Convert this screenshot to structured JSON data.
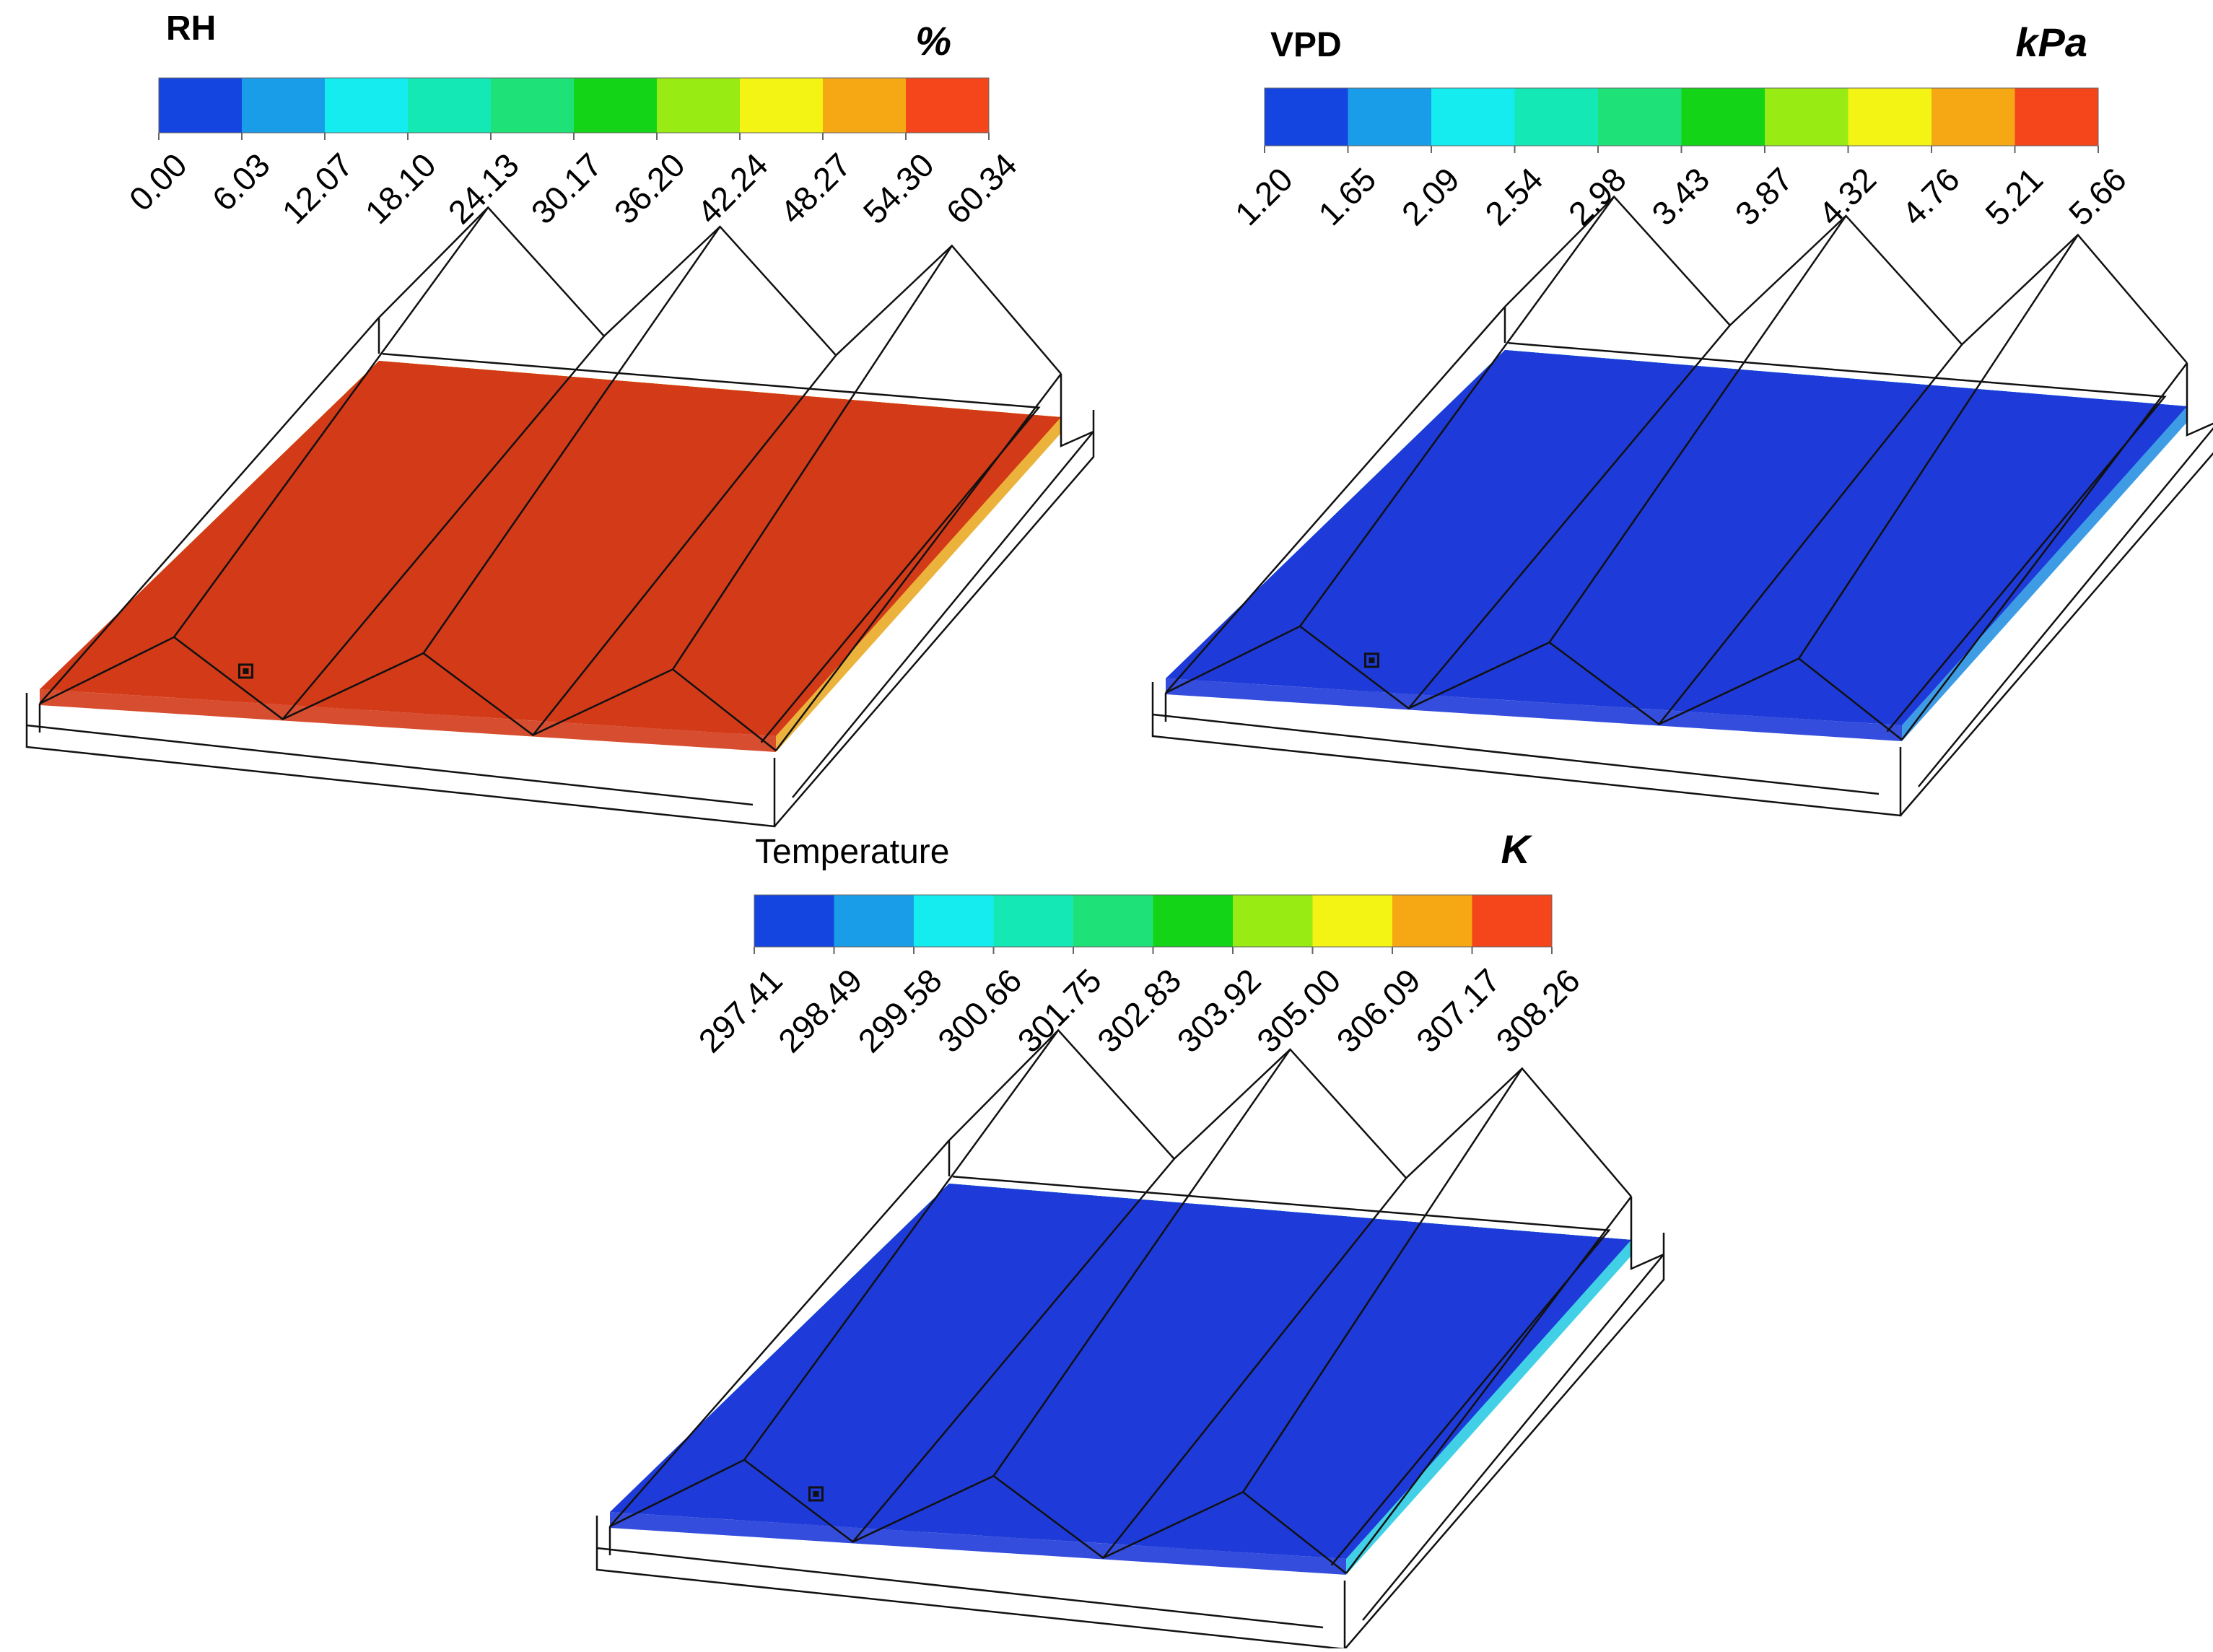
{
  "figure": {
    "panels": [
      {
        "id": "rh",
        "title": "RH",
        "unit": "%",
        "ticks": [
          "0.00",
          "6.03",
          "12.07",
          "18.10",
          "24.13",
          "30.17",
          "36.20",
          "42.24",
          "48.27",
          "54.30",
          "60.34"
        ],
        "band_colors": [
          "#d33a18",
          "#e87a14",
          "#e0c21a",
          "#b7d41a",
          "#86c51f",
          "#b7d41a",
          "#e0c21a",
          "#e8a61a"
        ]
      },
      {
        "id": "vpd",
        "title": "VPD",
        "unit": "kPa",
        "ticks": [
          "1.20",
          "1.65",
          "2.09",
          "2.54",
          "2.98",
          "3.43",
          "3.87",
          "4.32",
          "4.76",
          "5.21",
          "5.66"
        ],
        "band_colors": [
          "#1e3ad8",
          "#1c8be0",
          "#20c8e0",
          "#38e0c8",
          "#52e0b0",
          "#38e0c8",
          "#20c8e0",
          "#1c8be0"
        ]
      },
      {
        "id": "temperature",
        "title": "Temperature",
        "unit": "K",
        "ticks": [
          "297.41",
          "298.49",
          "299.58",
          "300.66",
          "301.75",
          "302.83",
          "303.92",
          "305.00",
          "306.09",
          "307.17",
          "308.26"
        ],
        "band_colors": [
          "#1e3ad8",
          "#1c8be0",
          "#20c8e0",
          "#2ad3b0",
          "#3ccf6a",
          "#56d02e",
          "#8cd41c",
          "#56d02e",
          "#2ad3b0",
          "#20c8e0"
        ]
      }
    ],
    "legend_colors": [
      "#1545e0",
      "#1a9de8",
      "#14ecf0",
      "#14e8b4",
      "#1ee278",
      "#14d418",
      "#98ec14",
      "#f4f414",
      "#f6a814",
      "#f4461a"
    ]
  }
}
